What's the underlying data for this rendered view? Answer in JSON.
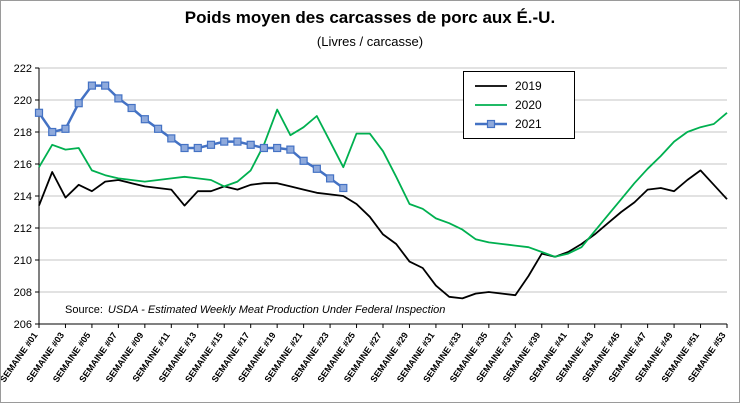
{
  "chart_data": {
    "type": "line",
    "title": "Poids moyen des carcasses de porc aux É.-U.",
    "subtitle": "(Livres / carcasse)",
    "ylim": [
      206,
      222
    ],
    "ytick_step": 2,
    "n_points": 53,
    "grid": true,
    "legend_position": "top-right",
    "x_tick_labels": [
      "SEMAINE #01",
      "SEMAINE #03",
      "SEMAINE #05",
      "SEMAINE #07",
      "SEMAINE #09",
      "SEMAINE #11",
      "SEMAINE #13",
      "SEMAINE #15",
      "SEMAINE #17",
      "SEMAINE #19",
      "SEMAINE #21",
      "SEMAINE #23",
      "SEMAINE #25",
      "SEMAINE #27",
      "SEMAINE #29",
      "SEMAINE #31",
      "SEMAINE #33",
      "SEMAINE #35",
      "SEMAINE #37",
      "SEMAINE #39",
      "SEMAINE #41",
      "SEMAINE #43",
      "SEMAINE #45",
      "SEMAINE #47",
      "SEMAINE #49",
      "SEMAINE #51",
      "SEMAINE #53"
    ],
    "series": [
      {
        "name": "2019",
        "color": "#000000",
        "marker": false,
        "values": [
          213.4,
          215.5,
          213.9,
          214.7,
          214.3,
          214.9,
          215.0,
          214.8,
          214.6,
          214.5,
          214.4,
          213.4,
          214.3,
          214.3,
          214.6,
          214.4,
          214.7,
          214.8,
          214.8,
          214.6,
          214.4,
          214.2,
          214.1,
          214.0,
          213.5,
          212.7,
          211.6,
          211.0,
          209.9,
          209.5,
          208.4,
          207.7,
          207.6,
          207.9,
          208.0,
          207.9,
          207.8,
          209.0,
          210.4,
          210.2,
          210.5,
          211.0,
          211.6,
          212.3,
          213.0,
          213.6,
          214.4,
          214.5,
          214.3,
          215.0,
          215.6,
          214.7,
          213.8
        ]
      },
      {
        "name": "2020",
        "color": "#00B050",
        "marker": false,
        "values": [
          215.8,
          217.2,
          216.9,
          217.0,
          215.6,
          215.3,
          215.1,
          215.0,
          214.9,
          215.0,
          215.1,
          215.2,
          215.1,
          215.0,
          214.6,
          214.9,
          215.6,
          217.2,
          219.4,
          217.8,
          218.3,
          219.0,
          217.4,
          215.8,
          217.9,
          217.9,
          216.8,
          215.2,
          213.5,
          213.2,
          212.6,
          212.3,
          211.9,
          211.3,
          211.1,
          211.0,
          210.9,
          210.8,
          210.5,
          210.2,
          210.4,
          210.8,
          211.8,
          212.8,
          213.8,
          214.8,
          215.7,
          216.5,
          217.4,
          218.0,
          218.3,
          218.5,
          219.2
        ]
      },
      {
        "name": "2021",
        "color": "#4472C4",
        "marker": true,
        "marker_fill": "#8FAADC",
        "values": [
          219.2,
          218.0,
          218.2,
          219.8,
          220.9,
          220.9,
          220.1,
          219.5,
          218.8,
          218.2,
          217.6,
          217.0,
          217.0,
          217.2,
          217.4,
          217.4,
          217.2,
          217.0,
          217.0,
          216.9,
          216.2,
          215.7,
          215.1,
          214.5
        ]
      }
    ],
    "source": {
      "label": "Source:",
      "text": "USDA - Estimated Weekly Meat Production Under Federal Inspection"
    }
  }
}
